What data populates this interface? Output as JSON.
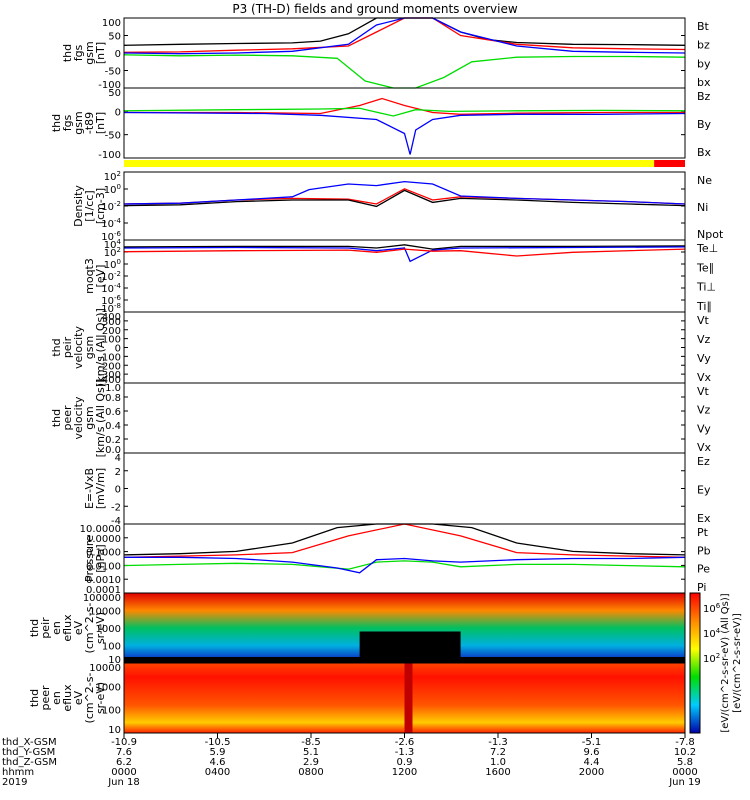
{
  "title": "P3 (TH-D) fields and ground moments overview",
  "colors": {
    "black": "#000000",
    "red": "#ff0000",
    "green": "#00dd00",
    "blue": "#0000ff",
    "yellow": "#ffff00"
  },
  "chart_data": [
    {
      "id": "p1",
      "type": "line",
      "ylabel_lines": [
        "thd",
        "fgs",
        "gsm",
        "[nT]"
      ],
      "yticks": [
        "100",
        "50",
        "0",
        "-50",
        "-100"
      ],
      "ylim": [
        -100,
        100
      ],
      "legend": [
        {
          "name": "Bt",
          "color": "black"
        },
        {
          "name": "bz",
          "color": "red"
        },
        {
          "name": "by",
          "color": "green"
        },
        {
          "name": "bx",
          "color": "blue"
        }
      ],
      "series": [
        {
          "name": "Bt",
          "color": "black",
          "x": [
            0,
            0.1,
            0.2,
            0.3,
            0.35,
            0.4,
            0.45,
            0.5,
            0.55,
            0.6,
            0.65,
            0.7,
            0.8,
            0.9,
            1.0
          ],
          "y": [
            22,
            25,
            27,
            29,
            34,
            55,
            100,
            100,
            100,
            60,
            38,
            30,
            25,
            24,
            22
          ]
        },
        {
          "name": "bz",
          "color": "red",
          "x": [
            0,
            0.1,
            0.2,
            0.3,
            0.4,
            0.45,
            0.5,
            0.55,
            0.6,
            0.7,
            0.8,
            0.9,
            1.0
          ],
          "y": [
            2,
            3,
            8,
            12,
            20,
            60,
            100,
            100,
            50,
            25,
            15,
            12,
            10
          ]
        },
        {
          "name": "by",
          "color": "green",
          "x": [
            0,
            0.1,
            0.2,
            0.3,
            0.38,
            0.43,
            0.48,
            0.52,
            0.57,
            0.62,
            0.7,
            0.8,
            0.9,
            1.0
          ],
          "y": [
            -5,
            -8,
            -6,
            -8,
            -15,
            -80,
            -100,
            -100,
            -70,
            -25,
            -12,
            -10,
            -10,
            -12
          ]
        },
        {
          "name": "bx",
          "color": "blue",
          "x": [
            0,
            0.1,
            0.2,
            0.3,
            0.4,
            0.45,
            0.5,
            0.55,
            0.6,
            0.7,
            0.8,
            0.9,
            1.0
          ],
          "y": [
            0,
            -2,
            0,
            5,
            25,
            80,
            100,
            100,
            60,
            20,
            5,
            2,
            0
          ]
        }
      ]
    },
    {
      "id": "p2",
      "type": "line",
      "ylabel_lines": [
        "thd",
        "fgs",
        "gsm",
        "-t89",
        "[nT]"
      ],
      "yticks": [
        "50",
        "0",
        "-50",
        "-100"
      ],
      "ylim": [
        -130,
        70
      ],
      "legend": [
        {
          "name": "Bz",
          "color": "red"
        },
        {
          "name": "By",
          "color": "green"
        },
        {
          "name": "Bx",
          "color": "blue"
        }
      ],
      "series": [
        {
          "name": "Bz",
          "color": "red",
          "x": [
            0,
            0.2,
            0.35,
            0.42,
            0.46,
            0.5,
            0.55,
            0.6,
            0.7,
            0.85,
            1.0
          ],
          "y": [
            0,
            0,
            -3,
            20,
            40,
            20,
            0,
            -5,
            -2,
            0,
            0
          ]
        },
        {
          "name": "By",
          "color": "green",
          "x": [
            0,
            0.2,
            0.35,
            0.42,
            0.48,
            0.52,
            0.58,
            0.7,
            0.85,
            1.0
          ],
          "y": [
            5,
            8,
            10,
            12,
            -10,
            8,
            3,
            5,
            6,
            5
          ]
        },
        {
          "name": "Bx",
          "color": "blue",
          "x": [
            0,
            0.25,
            0.35,
            0.45,
            0.5,
            0.51,
            0.52,
            0.55,
            0.6,
            0.7,
            0.85,
            1.0
          ],
          "y": [
            0,
            -3,
            -8,
            -20,
            -60,
            -120,
            -50,
            -20,
            -8,
            -5,
            -5,
            -3
          ]
        }
      ]
    },
    {
      "id": "p3",
      "type": "line",
      "ylabel_lines": [
        "Density",
        "[1/cc]",
        "[cm-3]"
      ],
      "yticks": [
        "10^2",
        "10^0",
        "10^-2",
        "10^-4",
        "10^-6"
      ],
      "ylim": [
        -6,
        2.5
      ],
      "log": true,
      "legend": [
        {
          "name": "Ne",
          "color": "red"
        },
        {
          "name": "Ni",
          "color": "black"
        },
        {
          "name": "Npot",
          "color": "blue"
        }
      ],
      "series": [
        {
          "name": "Ne",
          "color": "red",
          "x": [
            0,
            0.1,
            0.2,
            0.3,
            0.4,
            0.45,
            0.5,
            0.55,
            0.6,
            0.7,
            0.8,
            0.9,
            1.0
          ],
          "y": [
            -1.5,
            -1.4,
            -1.0,
            -0.8,
            -0.9,
            -1.5,
            0.4,
            -1.0,
            -0.6,
            -0.8,
            -1.0,
            -1.2,
            -1.5
          ]
        },
        {
          "name": "Ni",
          "color": "black",
          "x": [
            0,
            0.1,
            0.2,
            0.3,
            0.4,
            0.45,
            0.5,
            0.55,
            0.6,
            0.7,
            0.8,
            0.9,
            1.0
          ],
          "y": [
            -1.7,
            -1.6,
            -1.2,
            -1.0,
            -1.0,
            -1.8,
            0.2,
            -1.3,
            -0.8,
            -1.0,
            -1.3,
            -1.5,
            -1.7
          ]
        },
        {
          "name": "Npot",
          "color": "blue",
          "x": [
            0,
            0.1,
            0.2,
            0.3,
            0.33,
            0.4,
            0.45,
            0.5,
            0.55,
            0.6,
            0.7,
            0.8,
            0.9,
            1.0
          ],
          "y": [
            -1.5,
            -1.4,
            -1.0,
            -0.6,
            0.3,
            1.0,
            0.8,
            1.3,
            1.0,
            -0.5,
            -0.8,
            -1.0,
            -1.2,
            -1.5
          ]
        }
      ]
    },
    {
      "id": "p4",
      "type": "line",
      "ylabel_lines": [
        "moqt3",
        "[eV]"
      ],
      "yticks": [
        "10^4",
        "10^2",
        "10^0",
        "10^-2",
        "10^-4",
        "10^-6",
        "10^-8"
      ],
      "ylim": [
        -9,
        4.5
      ],
      "log": true,
      "legend": [
        {
          "name": "Te⊥",
          "color": "red"
        },
        {
          "name": "Te∥",
          "color": "black"
        },
        {
          "name": "Ti⊥",
          "color": "blue"
        },
        {
          "name": "Ti∥",
          "color": "green"
        }
      ],
      "series": [
        {
          "name": "Te∥",
          "color": "black",
          "x": [
            0,
            0.2,
            0.4,
            0.45,
            0.5,
            0.55,
            0.6,
            0.8,
            1.0
          ],
          "y": [
            3.2,
            3.3,
            3.3,
            3.0,
            3.6,
            2.8,
            3.3,
            3.3,
            3.4
          ]
        },
        {
          "name": "Ti⊥",
          "color": "blue",
          "x": [
            0,
            0.2,
            0.4,
            0.45,
            0.5,
            0.51,
            0.55,
            0.6,
            0.8,
            1.0
          ],
          "y": [
            3.0,
            3.1,
            3.0,
            2.5,
            3.0,
            0.5,
            2.6,
            3.0,
            3.1,
            3.2
          ]
        },
        {
          "name": "Te⊥",
          "color": "red",
          "x": [
            0,
            0.2,
            0.4,
            0.45,
            0.5,
            0.55,
            0.6,
            0.7,
            0.8,
            1.0
          ],
          "y": [
            2.3,
            2.5,
            2.6,
            2.2,
            2.8,
            2.4,
            2.5,
            1.5,
            2.2,
            2.8
          ]
        }
      ]
    },
    {
      "id": "p5",
      "type": "line",
      "ylabel_lines": [
        "thd",
        "peir",
        "velocity",
        "gsm",
        "[km/s (All Qs)]"
      ],
      "yticks": [
        "400",
        "300",
        "200",
        "100",
        "0",
        "-100",
        "-200",
        "-300",
        "-400"
      ],
      "ylim": [
        -400,
        400
      ],
      "legend": [
        {
          "name": "Vt",
          "color": "black"
        },
        {
          "name": "Vz",
          "color": "red"
        },
        {
          "name": "Vy",
          "color": "green"
        },
        {
          "name": "Vx",
          "color": "blue"
        }
      ],
      "series": []
    },
    {
      "id": "p6",
      "type": "line",
      "ylabel_lines": [
        "thd",
        "peer",
        "velocity",
        "gsm",
        "[km/s (All Qs)]"
      ],
      "yticks": [
        "1.0",
        "0.8",
        "0.6",
        "0.4",
        "0.2",
        "0.0"
      ],
      "ylim": [
        0,
        1
      ],
      "legend": [
        {
          "name": "Vt",
          "color": "black"
        },
        {
          "name": "Vz",
          "color": "red"
        },
        {
          "name": "Vy",
          "color": "green"
        },
        {
          "name": "Vx",
          "color": "blue"
        }
      ],
      "series": []
    },
    {
      "id": "p7",
      "type": "line",
      "ylabel_lines": [
        "E=-VxB",
        "[mV/m]"
      ],
      "yticks": [
        "4",
        "2",
        "0",
        "-2",
        "-4"
      ],
      "ylim": [
        -4,
        4
      ],
      "legend": [
        {
          "name": "Ez",
          "color": "red"
        },
        {
          "name": "Ey",
          "color": "green"
        },
        {
          "name": "Ex",
          "color": "blue"
        }
      ],
      "series": []
    },
    {
      "id": "p8",
      "type": "line",
      "ylabel_lines": [
        "Pressure",
        "[nPa]"
      ],
      "yticks": [
        "10.0000",
        "1.0000",
        "0.1000",
        "0.0100",
        "0.0010",
        "0.0001"
      ],
      "ylim": [
        -4,
        1.8
      ],
      "log": true,
      "legend": [
        {
          "name": "Pt",
          "color": "black"
        },
        {
          "name": "Pb",
          "color": "red"
        },
        {
          "name": "Pe",
          "color": "green"
        },
        {
          "name": "Pi",
          "color": "blue"
        }
      ],
      "series": [
        {
          "name": "Pt",
          "color": "black",
          "x": [
            0,
            0.1,
            0.2,
            0.3,
            0.38,
            0.45,
            0.55,
            0.62,
            0.7,
            0.8,
            0.9,
            1.0
          ],
          "y": [
            -0.8,
            -0.7,
            -0.5,
            0.2,
            1.5,
            1.8,
            1.8,
            1.5,
            0.2,
            -0.5,
            -0.7,
            -0.8
          ]
        },
        {
          "name": "Pb",
          "color": "red",
          "x": [
            0,
            0.1,
            0.2,
            0.3,
            0.4,
            0.5,
            0.6,
            0.7,
            0.8,
            0.9,
            1.0
          ],
          "y": [
            -1.0,
            -0.9,
            -0.8,
            -0.6,
            0.8,
            1.8,
            0.8,
            -0.6,
            -0.8,
            -0.9,
            -1.0
          ]
        },
        {
          "name": "Pe",
          "color": "green",
          "x": [
            0,
            0.1,
            0.2,
            0.3,
            0.4,
            0.45,
            0.5,
            0.55,
            0.6,
            0.7,
            0.8,
            0.9,
            1.0
          ],
          "y": [
            -1.7,
            -1.6,
            -1.5,
            -1.6,
            -2.0,
            -1.4,
            -1.3,
            -1.4,
            -1.8,
            -1.6,
            -1.6,
            -1.7,
            -1.8
          ]
        },
        {
          "name": "Pi",
          "color": "blue",
          "x": [
            0,
            0.1,
            0.2,
            0.3,
            0.38,
            0.42,
            0.45,
            0.5,
            0.55,
            0.6,
            0.7,
            0.8,
            0.9,
            1.0
          ],
          "y": [
            -1.0,
            -1.0,
            -1.1,
            -1.4,
            -1.9,
            -2.3,
            -1.2,
            -1.1,
            -1.3,
            -1.4,
            -1.2,
            -1.1,
            -1.1,
            -1.0
          ]
        }
      ]
    },
    {
      "id": "p9",
      "type": "heatmap",
      "ylabel_lines": [
        "thd",
        "peir",
        "en",
        "eflux",
        "eV",
        "(cm^2-s-",
        "sr-eV)"
      ],
      "yticks": [
        "100000",
        "10000",
        "1000",
        "100",
        "10"
      ]
    },
    {
      "id": "p10",
      "type": "heatmap",
      "ylabel_lines": [
        "thd",
        "peer",
        "en",
        "eflux",
        "eV",
        "(cm^2-s-",
        "sr-eV)"
      ],
      "yticks": [
        "10000",
        "1000",
        "100",
        "10"
      ]
    }
  ],
  "colorbar": {
    "ticks": [
      "10^6",
      "10^4",
      "10^2"
    ],
    "label": "[eV/(cm^2-s-sr-eV)]",
    "label2": "[eV/(cm^2-s-sr-eV) (All Qs)]"
  },
  "xaxis": {
    "rows": [
      {
        "label": "thd_X-GSM",
        "values": [
          "-10.9",
          "-10.5",
          "-8.5",
          "-2.6",
          "-1.3",
          "-5.1",
          "-7.8"
        ]
      },
      {
        "label": "thd_Y-GSM",
        "values": [
          "7.6",
          "5.9",
          "5.1",
          "-1.3",
          "7.2",
          "9.6",
          "10.2"
        ]
      },
      {
        "label": "thd_Z-GSM",
        "values": [
          "6.2",
          "4.6",
          "2.9",
          "0.9",
          "1.0",
          "4.4",
          "5.8"
        ]
      },
      {
        "label": "hhmm",
        "values": [
          "0000",
          "0400",
          "0800",
          "1200",
          "1600",
          "2000",
          "0000"
        ]
      },
      {
        "label": "2019",
        "values": [
          "Jun 18",
          "",
          "",
          "",
          "",
          "",
          "Jun 19"
        ]
      }
    ]
  }
}
